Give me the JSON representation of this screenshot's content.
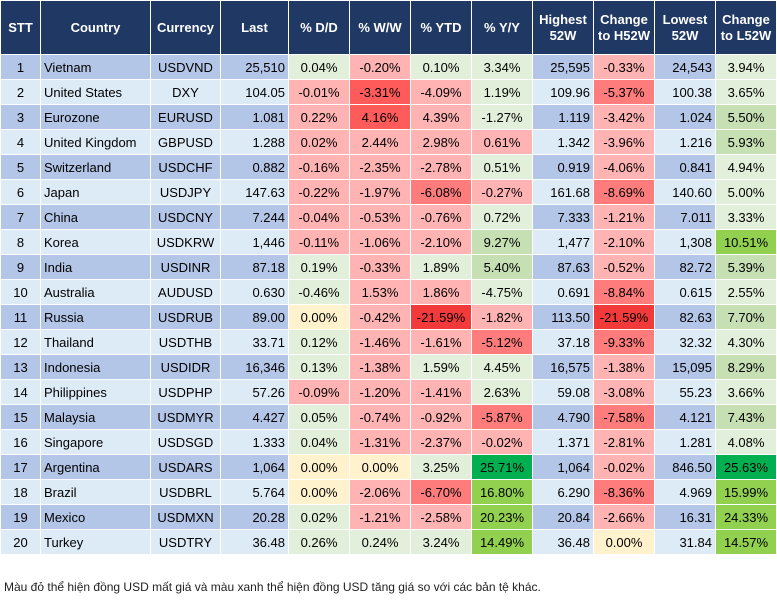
{
  "colors": {
    "header": "#1f3864",
    "row_odd": "#b4c6e7",
    "row_even": "#ddebf7",
    "g1": "#e2efda",
    "g2": "#c6e0b4",
    "g3": "#92d050",
    "g4": "#00b050",
    "r1": "#ffb3b3",
    "r2": "#ff7c7c",
    "r3": "#ff5b5b",
    "r4": "#f23a3a",
    "y": "#fff2cc"
  },
  "headers": [
    "STT",
    "Country",
    "Currency",
    "Last",
    "% D/D",
    "% W/W",
    "% YTD",
    "% Y/Y",
    "Highest 52W",
    "Change to H52W",
    "Lowest 52W",
    "Change to L52W"
  ],
  "rows": [
    [
      "1",
      "Vietnam",
      "USDVND",
      "25,510",
      [
        "0.04%",
        "g1"
      ],
      [
        "-0.20%",
        "r1"
      ],
      [
        "0.10%",
        "g1"
      ],
      [
        "3.34%",
        "g1"
      ],
      "25,595",
      [
        "-0.33%",
        "r1"
      ],
      "24,543",
      [
        "3.94%",
        "g1"
      ]
    ],
    [
      "2",
      "United States",
      "DXY",
      "104.05",
      [
        "-0.01%",
        "r1"
      ],
      [
        "-3.31%",
        "r3"
      ],
      [
        "-4.09%",
        "r1"
      ],
      [
        "1.19%",
        "g1"
      ],
      "109.96",
      [
        "-5.37%",
        "r2"
      ],
      "100.38",
      [
        "3.65%",
        "g1"
      ]
    ],
    [
      "3",
      "Eurozone",
      "EURUSD",
      "1.081",
      [
        "0.22%",
        "r1"
      ],
      [
        "4.16%",
        "r3"
      ],
      [
        "4.39%",
        "r1"
      ],
      [
        "-1.27%",
        "g1"
      ],
      "1.119",
      [
        "-3.42%",
        "r1"
      ],
      "1.024",
      [
        "5.50%",
        "g2"
      ]
    ],
    [
      "4",
      "United Kingdom",
      "GBPUSD",
      "1.288",
      [
        "0.02%",
        "r1"
      ],
      [
        "2.44%",
        "r1"
      ],
      [
        "2.98%",
        "r1"
      ],
      [
        "0.61%",
        "r1"
      ],
      "1.342",
      [
        "-3.96%",
        "r1"
      ],
      "1.216",
      [
        "5.93%",
        "g2"
      ]
    ],
    [
      "5",
      "Switzerland",
      "USDCHF",
      "0.882",
      [
        "-0.16%",
        "r1"
      ],
      [
        "-2.35%",
        "r1"
      ],
      [
        "-2.78%",
        "r1"
      ],
      [
        "0.51%",
        "g1"
      ],
      "0.919",
      [
        "-4.06%",
        "r1"
      ],
      "0.841",
      [
        "4.94%",
        "g1"
      ]
    ],
    [
      "6",
      "Japan",
      "USDJPY",
      "147.63",
      [
        "-0.22%",
        "r1"
      ],
      [
        "-1.97%",
        "r1"
      ],
      [
        "-6.08%",
        "r2"
      ],
      [
        "-0.27%",
        "r1"
      ],
      "161.68",
      [
        "-8.69%",
        "r2"
      ],
      "140.60",
      [
        "5.00%",
        "g1"
      ]
    ],
    [
      "7",
      "China",
      "USDCNY",
      "7.244",
      [
        "-0.04%",
        "r1"
      ],
      [
        "-0.53%",
        "r1"
      ],
      [
        "-0.76%",
        "r1"
      ],
      [
        "0.72%",
        "g1"
      ],
      "7.333",
      [
        "-1.21%",
        "r1"
      ],
      "7.011",
      [
        "3.33%",
        "g1"
      ]
    ],
    [
      "8",
      "Korea",
      "USDKRW",
      "1,446",
      [
        "-0.11%",
        "r1"
      ],
      [
        "-1.06%",
        "r1"
      ],
      [
        "-2.10%",
        "r1"
      ],
      [
        "9.27%",
        "g2"
      ],
      "1,477",
      [
        "-2.10%",
        "r1"
      ],
      "1,308",
      [
        "10.51%",
        "g3"
      ]
    ],
    [
      "9",
      "India",
      "USDINR",
      "87.18",
      [
        "0.19%",
        "g1"
      ],
      [
        "-0.33%",
        "r1"
      ],
      [
        "1.89%",
        "g1"
      ],
      [
        "5.40%",
        "g2"
      ],
      "87.63",
      [
        "-0.52%",
        "r1"
      ],
      "82.72",
      [
        "5.39%",
        "g2"
      ]
    ],
    [
      "10",
      "Australia",
      "AUDUSD",
      "0.630",
      [
        "-0.46%",
        "g1"
      ],
      [
        "1.53%",
        "r1"
      ],
      [
        "1.86%",
        "r1"
      ],
      [
        "-4.75%",
        "g1"
      ],
      "0.691",
      [
        "-8.84%",
        "r2"
      ],
      "0.615",
      [
        "2.55%",
        "g1"
      ]
    ],
    [
      "11",
      "Russia",
      "USDRUB",
      "89.00",
      [
        "0.00%",
        "y"
      ],
      [
        "-0.42%",
        "r1"
      ],
      [
        "-21.59%",
        "r4"
      ],
      [
        "-1.82%",
        "r1"
      ],
      "113.50",
      [
        "-21.59%",
        "r4"
      ],
      "82.63",
      [
        "7.70%",
        "g2"
      ]
    ],
    [
      "12",
      "Thailand",
      "USDTHB",
      "33.71",
      [
        "0.12%",
        "g1"
      ],
      [
        "-1.46%",
        "r1"
      ],
      [
        "-1.61%",
        "r1"
      ],
      [
        "-5.12%",
        "r2"
      ],
      "37.18",
      [
        "-9.33%",
        "r2"
      ],
      "32.32",
      [
        "4.30%",
        "g1"
      ]
    ],
    [
      "13",
      "Indonesia",
      "USDIDR",
      "16,346",
      [
        "0.13%",
        "g1"
      ],
      [
        "-1.38%",
        "r1"
      ],
      [
        "1.59%",
        "g1"
      ],
      [
        "4.45%",
        "g1"
      ],
      "16,575",
      [
        "-1.38%",
        "r1"
      ],
      "15,095",
      [
        "8.29%",
        "g2"
      ]
    ],
    [
      "14",
      "Philippines",
      "USDPHP",
      "57.26",
      [
        "-0.09%",
        "r1"
      ],
      [
        "-1.20%",
        "r1"
      ],
      [
        "-1.41%",
        "r1"
      ],
      [
        "2.63%",
        "g1"
      ],
      "59.08",
      [
        "-3.08%",
        "r1"
      ],
      "55.23",
      [
        "3.66%",
        "g1"
      ]
    ],
    [
      "15",
      "Malaysia",
      "USDMYR",
      "4.427",
      [
        "0.05%",
        "g1"
      ],
      [
        "-0.74%",
        "r1"
      ],
      [
        "-0.92%",
        "r1"
      ],
      [
        "-5.87%",
        "r2"
      ],
      "4.790",
      [
        "-7.58%",
        "r2"
      ],
      "4.121",
      [
        "7.43%",
        "g2"
      ]
    ],
    [
      "16",
      "Singapore",
      "USDSGD",
      "1.333",
      [
        "0.04%",
        "g1"
      ],
      [
        "-1.31%",
        "r1"
      ],
      [
        "-2.37%",
        "r1"
      ],
      [
        "-0.02%",
        "r1"
      ],
      "1.371",
      [
        "-2.81%",
        "r1"
      ],
      "1.281",
      [
        "4.08%",
        "g1"
      ]
    ],
    [
      "17",
      "Argentina",
      "USDARS",
      "1,064",
      [
        "0.00%",
        "y"
      ],
      [
        "0.00%",
        "y"
      ],
      [
        "3.25%",
        "g1"
      ],
      [
        "25.71%",
        "g4"
      ],
      "1,064",
      [
        "-0.02%",
        "r1"
      ],
      "846.50",
      [
        "25.63%",
        "g4"
      ]
    ],
    [
      "18",
      "Brazil",
      "USDBRL",
      "5.764",
      [
        "0.00%",
        "y"
      ],
      [
        "-2.06%",
        "r1"
      ],
      [
        "-6.70%",
        "r2"
      ],
      [
        "16.80%",
        "g3"
      ],
      "6.290",
      [
        "-8.36%",
        "r2"
      ],
      "4.969",
      [
        "15.99%",
        "g3"
      ]
    ],
    [
      "19",
      "Mexico",
      "USDMXN",
      "20.28",
      [
        "0.02%",
        "g1"
      ],
      [
        "-1.21%",
        "r1"
      ],
      [
        "-2.58%",
        "r1"
      ],
      [
        "20.23%",
        "g3"
      ],
      "20.84",
      [
        "-2.66%",
        "r1"
      ],
      "16.31",
      [
        "24.33%",
        "g3"
      ]
    ],
    [
      "20",
      "Turkey",
      "USDTRY",
      "36.48",
      [
        "0.26%",
        "g1"
      ],
      [
        "0.24%",
        "g1"
      ],
      [
        "3.24%",
        "g1"
      ],
      [
        "14.49%",
        "g3"
      ],
      "36.48",
      [
        "0.00%",
        "y"
      ],
      "31.84",
      [
        "14.57%",
        "g3"
      ]
    ]
  ],
  "footnote": "Màu đỏ thể hiện đồng USD mất giá và màu xanh thể hiện đồng USD tăng giá so với các bản tệ khác."
}
